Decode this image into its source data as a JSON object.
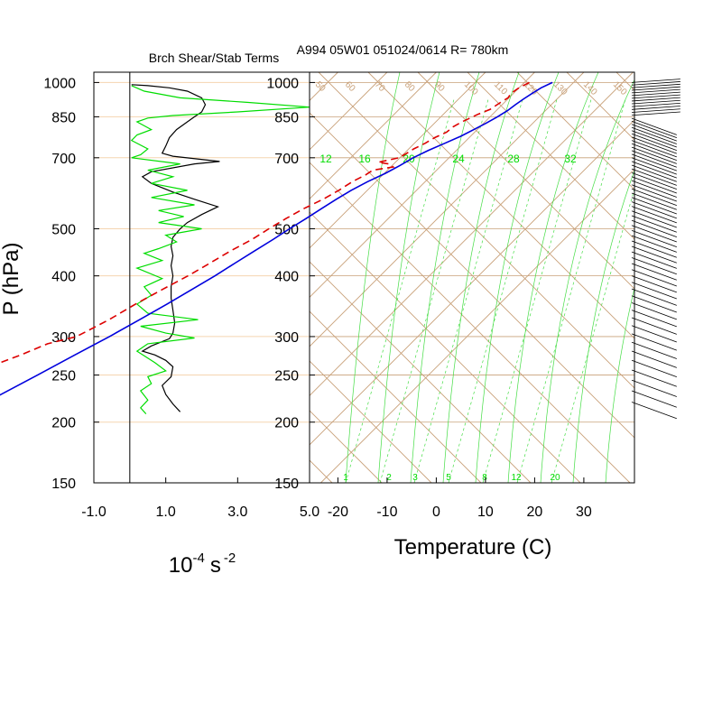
{
  "chart_data": [
    {
      "type": "line",
      "title": "Brch Shear/Stab Terms",
      "ylabel": "P (hPa)",
      "xlabel_base": "10",
      "xlabel_exp1": "-4",
      "xlabel_unit": "s",
      "xlabel_exp2": "-2",
      "y_scale": "log",
      "ylim": [
        1050,
        150
      ],
      "xlim": [
        -1.0,
        5.0
      ],
      "pressure_ticks": [
        1000,
        850,
        700,
        500,
        400,
        300,
        250,
        200,
        150
      ],
      "pressure_tick_labels": [
        "1000",
        "850",
        "700",
        "500",
        "400",
        "300",
        "250",
        "200",
        "150"
      ],
      "x_ticks": [
        -1.0,
        1.0,
        3.0,
        5.0
      ],
      "x_tick_labels": [
        "-1.0",
        "1.0",
        "3.0",
        "5.0"
      ],
      "grid": "horizontal at pressure ticks",
      "colors": {
        "black_series": "#000000",
        "green_series": "#00dd00",
        "grid": "#f5d5b0"
      },
      "series": [
        {
          "color": "black",
          "points": [
            [
              0.05,
              990
            ],
            [
              0.5,
              985
            ],
            [
              1.1,
              975
            ],
            [
              1.6,
              960
            ],
            [
              2.0,
              930
            ],
            [
              2.1,
              900
            ],
            [
              2.0,
              870
            ],
            [
              1.8,
              850
            ],
            [
              1.6,
              830
            ],
            [
              1.3,
              800
            ],
            [
              1.1,
              770
            ],
            [
              1.0,
              740
            ],
            [
              0.9,
              715
            ],
            [
              1.2,
              705
            ],
            [
              2.5,
              688
            ],
            [
              1.8,
              680
            ],
            [
              0.6,
              655
            ],
            [
              0.35,
              640
            ],
            [
              0.6,
              620
            ],
            [
              1.2,
              595
            ],
            [
              1.8,
              575
            ],
            [
              2.45,
              555
            ],
            [
              2.0,
              535
            ],
            [
              1.6,
              515
            ],
            [
              1.4,
              500
            ],
            [
              1.2,
              480
            ],
            [
              1.15,
              460
            ],
            [
              1.2,
              440
            ],
            [
              1.15,
              420
            ],
            [
              1.2,
              400
            ],
            [
              1.15,
              380
            ],
            [
              1.15,
              360
            ],
            [
              1.2,
              340
            ],
            [
              1.25,
              320
            ],
            [
              1.2,
              305
            ],
            [
              1.1,
              297
            ],
            [
              0.6,
              287
            ],
            [
              0.35,
              280
            ],
            [
              0.7,
              275
            ],
            [
              1.0,
              268
            ],
            [
              1.2,
              260
            ],
            [
              1.15,
              248
            ],
            [
              0.9,
              238
            ],
            [
              1.0,
              228
            ],
            [
              1.2,
              218
            ],
            [
              1.4,
              210
            ]
          ]
        },
        {
          "color": "green",
          "points": [
            [
              0.05,
              985
            ],
            [
              0.4,
              960
            ],
            [
              1.4,
              930
            ],
            [
              3.3,
              910
            ],
            [
              5.0,
              890
            ],
            [
              3.0,
              870
            ],
            [
              1.2,
              855
            ],
            [
              0.5,
              845
            ],
            [
              0.2,
              830
            ],
            [
              0.6,
              800
            ],
            [
              0.2,
              780
            ],
            [
              0.05,
              760
            ],
            [
              0.5,
              730
            ],
            [
              0.3,
              710
            ],
            [
              0.05,
              700
            ],
            [
              1.4,
              680
            ],
            [
              0.5,
              660
            ],
            [
              1.2,
              640
            ],
            [
              0.6,
              620
            ],
            [
              1.6,
              600
            ],
            [
              0.6,
              580
            ],
            [
              1.8,
              560
            ],
            [
              0.8,
              545
            ],
            [
              1.5,
              530
            ],
            [
              0.8,
              515
            ],
            [
              2.0,
              500
            ],
            [
              1.0,
              485
            ],
            [
              1.3,
              470
            ],
            [
              0.8,
              455
            ],
            [
              0.4,
              445
            ],
            [
              0.9,
              430
            ],
            [
              0.2,
              415
            ],
            [
              0.9,
              395
            ],
            [
              0.4,
              380
            ],
            [
              0.6,
              365
            ],
            [
              0.2,
              350
            ],
            [
              0.5,
              335
            ],
            [
              1.9,
              325
            ],
            [
              0.3,
              315
            ],
            [
              1.0,
              305
            ],
            [
              1.8,
              298
            ],
            [
              0.5,
              290
            ],
            [
              0.2,
              280
            ],
            [
              0.7,
              265
            ],
            [
              1.0,
              255
            ],
            [
              0.5,
              248
            ],
            [
              0.6,
              240
            ],
            [
              0.3,
              232
            ],
            [
              0.5,
              222
            ],
            [
              0.3,
              214
            ],
            [
              0.45,
              208
            ]
          ]
        }
      ]
    },
    {
      "type": "line",
      "title": "A994 05W01 051024/0614 R= 780km",
      "xlabel": "Temperature (C)",
      "skew": "skew-T log-P",
      "y_scale": "log",
      "ylim": [
        1050,
        150
      ],
      "xlim": [
        -23,
        42
      ],
      "pressure_ticks": [
        1000,
        850,
        700,
        500,
        400,
        300,
        250,
        200,
        150
      ],
      "pressure_tick_labels": [
        "1000",
        "850",
        "700",
        "500",
        "400",
        "300",
        "250",
        "200",
        "150"
      ],
      "temperature_ticks": [
        -20,
        -10,
        0,
        10,
        20,
        30
      ],
      "temperature_tick_labels": [
        "-20",
        "-10",
        "0",
        "10",
        "20",
        "30"
      ],
      "isotherm_labels": [
        "12",
        "16",
        "20",
        "24",
        "28",
        "32"
      ],
      "theta_labels": [
        "50",
        "60",
        "70",
        "80",
        "90",
        "100",
        "110",
        "120",
        "130",
        "140",
        "150"
      ],
      "mixing_ratio_labels": [
        "1",
        "2",
        "3",
        "5",
        "8",
        "12",
        "20"
      ],
      "colors": {
        "temperature": "#0000dd",
        "dewpoint": "#dd0000",
        "grid_brown": "#c8a078",
        "moist_adiabat": "#44dd44",
        "isotherm_label": "#00dd00"
      },
      "series": [
        {
          "name": "temperature",
          "color": "blue",
          "points": [
            [
              25.7,
              1000
            ],
            [
              24.5,
              975
            ],
            [
              23.8,
              950
            ],
            [
              23.2,
              925
            ],
            [
              22.7,
              900
            ],
            [
              22.3,
              875
            ],
            [
              21.5,
              850
            ],
            [
              20.5,
              825
            ],
            [
              19.3,
              800
            ],
            [
              18.0,
              775
            ],
            [
              16.2,
              750
            ],
            [
              14.3,
              725
            ],
            [
              12.7,
              700
            ],
            [
              11.6,
              675
            ],
            [
              10.2,
              650
            ],
            [
              8.3,
              625
            ],
            [
              6.7,
              600
            ],
            [
              5.5,
              575
            ],
            [
              4.4,
              550
            ],
            [
              3.3,
              525
            ],
            [
              2.0,
              500
            ],
            [
              0.8,
              475
            ],
            [
              -0.6,
              450
            ],
            [
              -2.1,
              425
            ],
            [
              -3.6,
              400
            ],
            [
              -5.5,
              375
            ],
            [
              -7.6,
              350
            ],
            [
              -10.0,
              325
            ],
            [
              -12.7,
              300
            ],
            [
              -16.0,
              275
            ],
            [
              -19.5,
              250
            ],
            [
              -23.5,
              225
            ],
            [
              -26.5,
              205
            ]
          ]
        },
        {
          "name": "dewpoint",
          "color": "red",
          "dashed": true,
          "points": [
            [
              21.0,
              1000
            ],
            [
              20.0,
              975
            ],
            [
              19.5,
              950
            ],
            [
              19.8,
              930
            ],
            [
              19.2,
              910
            ],
            [
              18.5,
              880
            ],
            [
              17.0,
              860
            ],
            [
              16.5,
              850
            ],
            [
              15.3,
              830
            ],
            [
              14.5,
              810
            ],
            [
              14.3,
              790
            ],
            [
              13.0,
              770
            ],
            [
              12.2,
              750
            ],
            [
              11.0,
              730
            ],
            [
              10.5,
              715
            ],
            [
              9.8,
              700
            ],
            [
              6.5,
              685
            ],
            [
              9.0,
              680
            ],
            [
              10.5,
              670
            ],
            [
              7.0,
              660
            ],
            [
              6.5,
              645
            ],
            [
              5.2,
              625
            ],
            [
              4.2,
              600
            ],
            [
              2.8,
              575
            ],
            [
              0.8,
              550
            ],
            [
              -0.8,
              525
            ],
            [
              -2.2,
              500
            ],
            [
              -3.5,
              475
            ],
            [
              -5.5,
              450
            ],
            [
              -7.2,
              425
            ],
            [
              -9.1,
              400
            ],
            [
              -11.5,
              375
            ],
            [
              -14.0,
              350
            ],
            [
              -16.2,
              325
            ],
            [
              -19.4,
              300
            ],
            [
              -23.8,
              290
            ],
            [
              -27.0,
              275
            ],
            [
              -31.0,
              260
            ],
            [
              -35.0,
              245
            ],
            [
              -40.5,
              228
            ]
          ]
        }
      ]
    }
  ]
}
